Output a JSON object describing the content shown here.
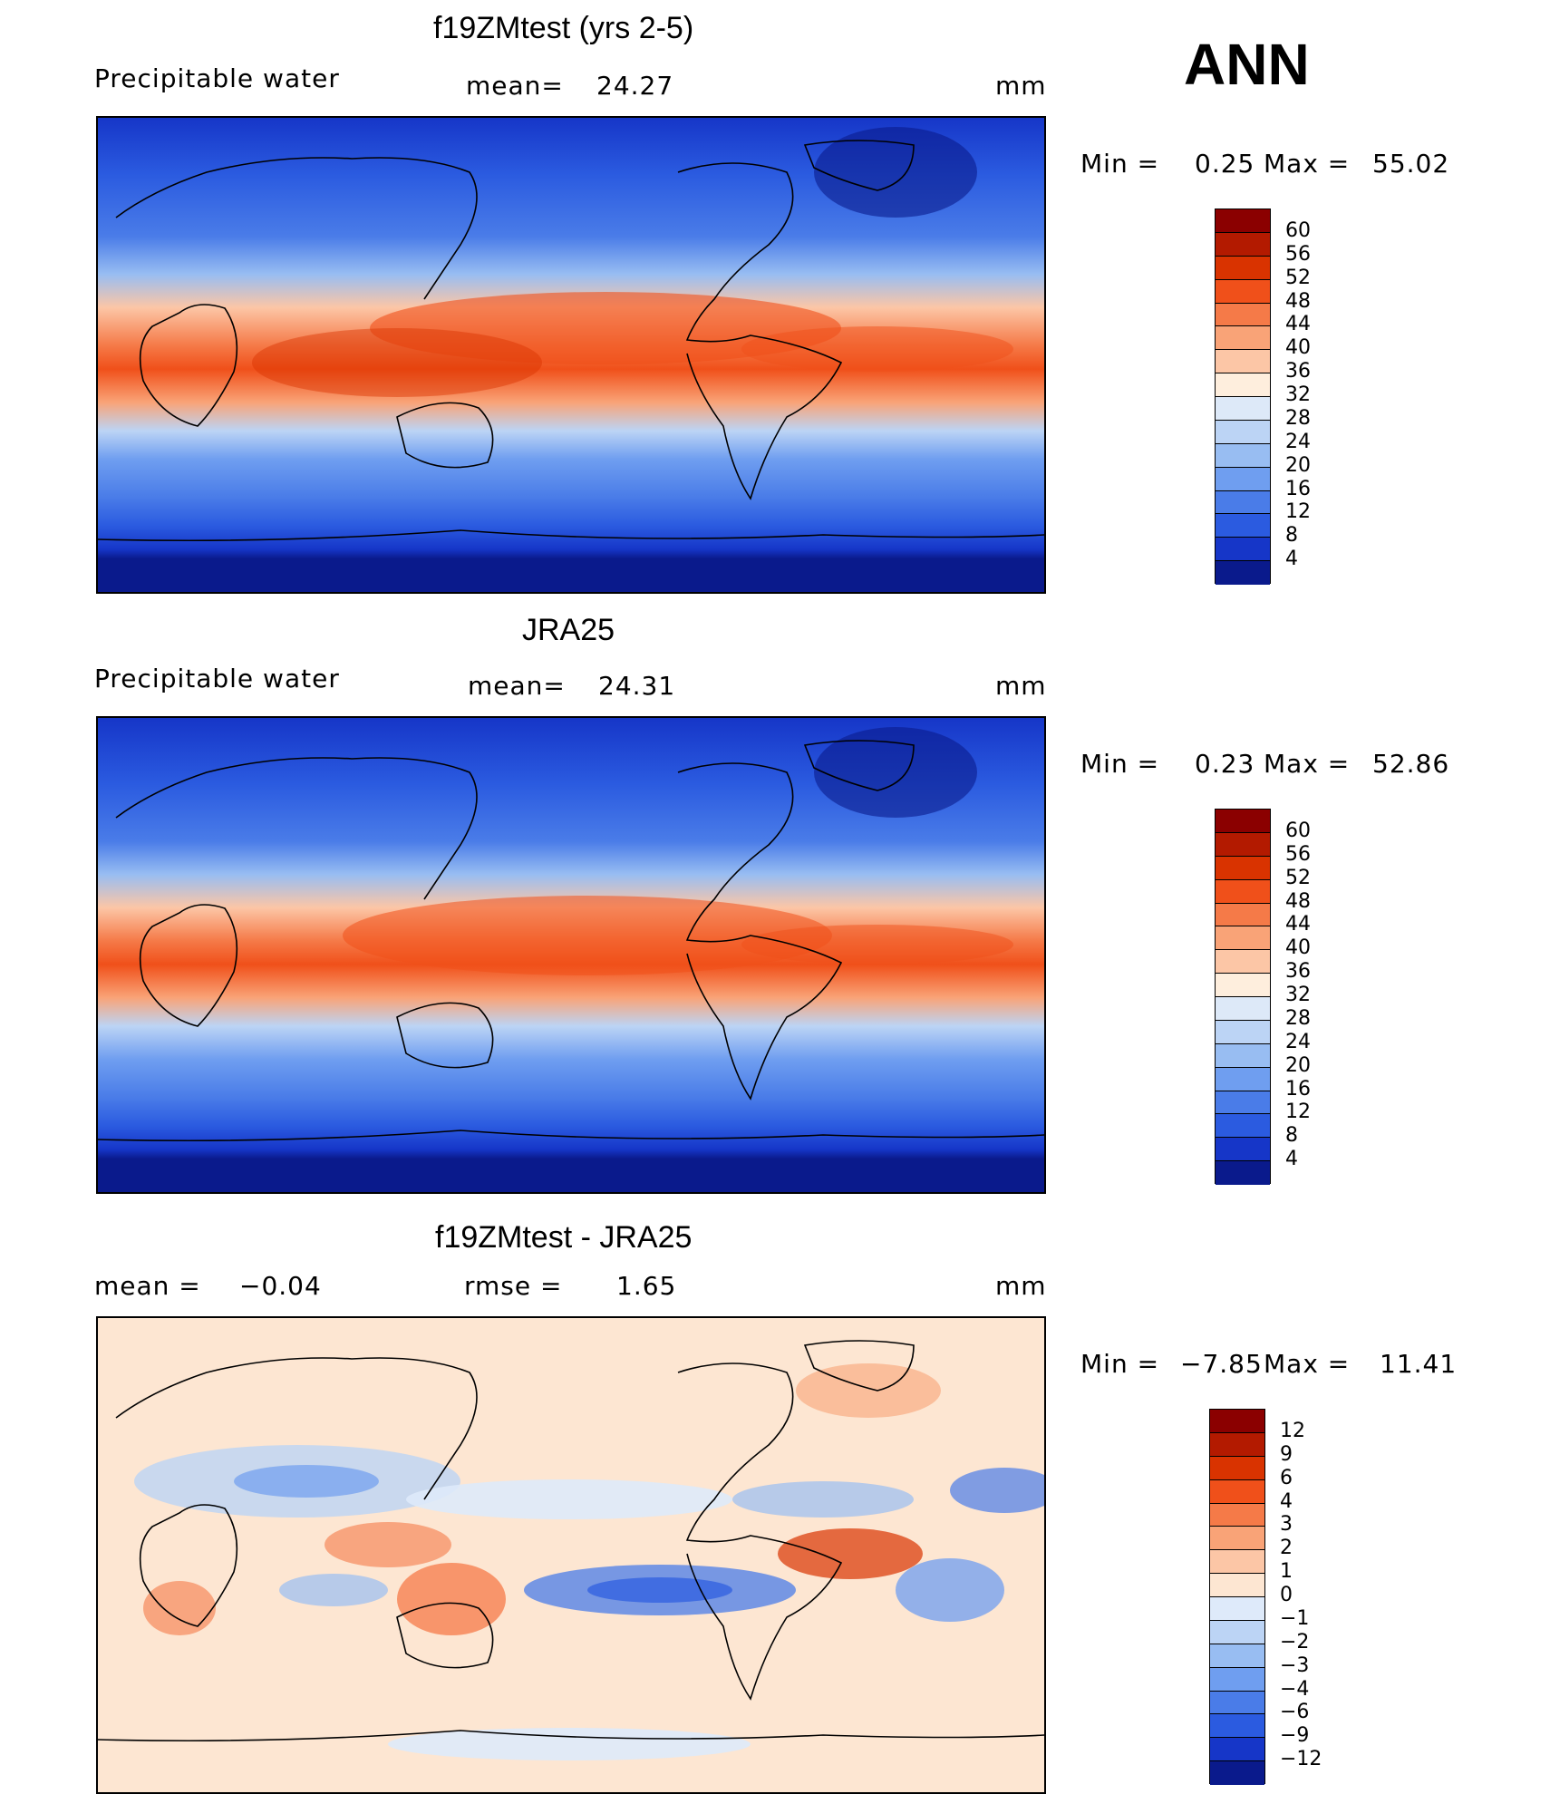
{
  "header": {
    "season": "ANN"
  },
  "panels": [
    {
      "id": "model",
      "title": "f19ZMtest (yrs 2-5)",
      "variable": "Precipitable water",
      "stat_label": "mean=",
      "stat_value": "24.27",
      "units": "mm",
      "range_text": {
        "min_label": "Min =",
        "min": "0.25",
        "max_label": "Max =",
        "max": "55.02"
      },
      "colorbar": {
        "levels": [
          "60",
          "56",
          "52",
          "48",
          "44",
          "40",
          "36",
          "32",
          "28",
          "24",
          "20",
          "16",
          "12",
          "8",
          "4"
        ],
        "colors": [
          "#8b0000",
          "#b31a00",
          "#d93300",
          "#f0501a",
          "#f57a48",
          "#f9a377",
          "#fcc6a6",
          "#feeedd",
          "#dde9f8",
          "#bcd4f5",
          "#98bdf2",
          "#6f9ef0",
          "#4a7ce8",
          "#2b5be0",
          "#1636c8",
          "#0a1a8c"
        ]
      },
      "chart_data": {
        "type": "heatmap",
        "title": "f19ZMtest (yrs 2-5)",
        "field": "Precipitable water",
        "units": "mm",
        "mean": 24.27,
        "min": 0.25,
        "max": 55.02,
        "projection": "cylindrical equidistant, centered on Pacific"
      }
    },
    {
      "id": "obs",
      "title": "JRA25",
      "variable": "Precipitable water",
      "stat_label": "mean=",
      "stat_value": "24.31",
      "units": "mm",
      "range_text": {
        "min_label": "Min =",
        "min": "0.23",
        "max_label": "Max =",
        "max": "52.86"
      },
      "colorbar": {
        "levels": [
          "60",
          "56",
          "52",
          "48",
          "44",
          "40",
          "36",
          "32",
          "28",
          "24",
          "20",
          "16",
          "12",
          "8",
          "4"
        ],
        "colors": [
          "#8b0000",
          "#b31a00",
          "#d93300",
          "#f0501a",
          "#f57a48",
          "#f9a377",
          "#fcc6a6",
          "#feeedd",
          "#dde9f8",
          "#bcd4f5",
          "#98bdf2",
          "#6f9ef0",
          "#4a7ce8",
          "#2b5be0",
          "#1636c8",
          "#0a1a8c"
        ]
      },
      "chart_data": {
        "type": "heatmap",
        "title": "JRA25",
        "field": "Precipitable water",
        "units": "mm",
        "mean": 24.31,
        "min": 0.23,
        "max": 52.86
      }
    },
    {
      "id": "diff",
      "title": "f19ZMtest - JRA25",
      "variable": "mean =",
      "variable_value": "−0.04",
      "stat_label": "rmse =",
      "stat_value": "1.65",
      "units": "mm",
      "range_text": {
        "min_label": "Min =",
        "min": "−7.85",
        "max_label": "Max =",
        "max": "11.41"
      },
      "colorbar": {
        "levels": [
          "12",
          "9",
          "6",
          "4",
          "3",
          "2",
          "1",
          "0",
          "−1",
          "−2",
          "−3",
          "−4",
          "−6",
          "−9",
          "−12"
        ],
        "colors": [
          "#8b0000",
          "#b31a00",
          "#d93300",
          "#f0501a",
          "#f57a48",
          "#f9a377",
          "#fcc6a6",
          "#fde6d2",
          "#deeafa",
          "#bcd4f5",
          "#98bdf2",
          "#6f9ef0",
          "#4a7ce8",
          "#2b5be0",
          "#1636c8",
          "#0a1a8c"
        ]
      },
      "chart_data": {
        "type": "heatmap",
        "title": "f19ZMtest - JRA25",
        "units": "mm",
        "mean": -0.04,
        "rmse": 1.65,
        "min": -7.85,
        "max": 11.41
      }
    }
  ]
}
